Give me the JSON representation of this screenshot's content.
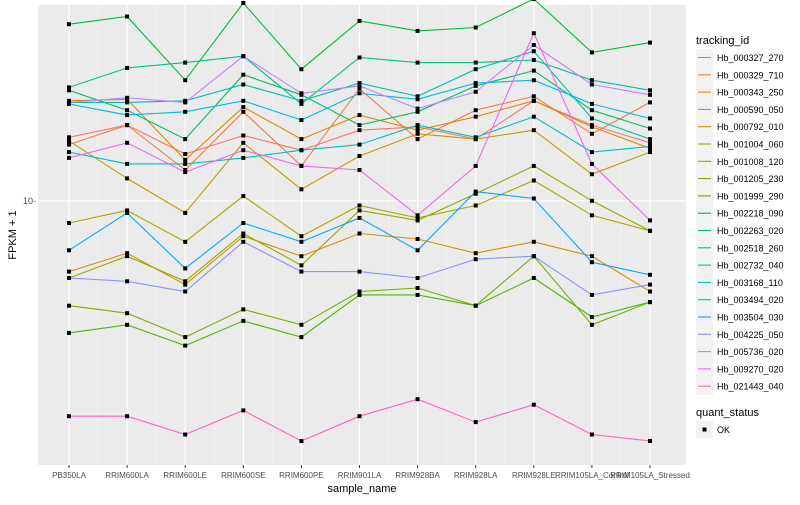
{
  "chart_data": {
    "type": "line",
    "xlabel": "sample_name",
    "ylabel": "FPKM + 1",
    "y_scale": "log10",
    "ylim": [
      3.25,
      23
    ],
    "y_ticks": [
      10
    ],
    "y_tick_labels": [
      "10-"
    ],
    "grid": true,
    "legend_placement": "right",
    "categories": [
      "PB350LA",
      "RRIM600LA",
      "RRIM600LE",
      "RRIM600SE",
      "RRIM600PE",
      "RRIM901LA",
      "RRIM928BA",
      "RRIM928LA",
      "RRIM928LE",
      "RRIM105LA_Control",
      "RRIM105LA_Stressed"
    ],
    "x_tick_labels": [
      "PB350LA",
      "RRIM600LA",
      "RRIM600LE",
      "RRIM600SE",
      "RRIM600PE",
      "RRIM901LA",
      "RRIM928BA",
      "RRIM928LA",
      "RRIM928LE",
      "RRIM105LA_Control",
      "RRIM105LA_Stressed"
    ],
    "legend_title": "tracking_id",
    "series": [
      {
        "name": "Hb_000327_270",
        "color": "#F8766D",
        "values": [
          13.1,
          13.8,
          12.2,
          13.2,
          12.4,
          13.5,
          13.7,
          13.0,
          15.3,
          13.8,
          12.8
        ]
      },
      {
        "name": "Hb_000329_710",
        "color": "#EF7F49",
        "values": [
          12.7,
          13.8,
          11.4,
          14.6,
          11.6,
          16.1,
          13.0,
          14.7,
          15.6,
          13.3,
          15.2
        ]
      },
      {
        "name": "Hb_000343_250",
        "color": "#E48800",
        "values": [
          15.3,
          15.4,
          11.9,
          14.9,
          13.0,
          14.4,
          13.5,
          14.3,
          15.3,
          13.7,
          12.5
        ]
      },
      {
        "name": "Hb_000590_050",
        "color": "#D69100",
        "values": [
          7.4,
          8.0,
          7.0,
          8.6,
          7.9,
          8.7,
          8.5,
          8.0,
          8.4,
          7.9,
          6.8
        ]
      },
      {
        "name": "Hb_000792_010",
        "color": "#C49A00",
        "values": [
          12.9,
          11.0,
          9.5,
          12.8,
          10.5,
          12.1,
          13.3,
          13.0,
          13.5,
          11.2,
          12.3
        ]
      },
      {
        "name": "Hb_001004_060",
        "color": "#AFA200",
        "values": [
          9.1,
          9.6,
          8.4,
          10.2,
          8.6,
          9.8,
          9.3,
          9.8,
          10.9,
          9.4,
          8.8
        ]
      },
      {
        "name": "Hb_001008_120",
        "color": "#96A900",
        "values": [
          7.2,
          7.9,
          7.1,
          8.7,
          7.6,
          9.6,
          9.2,
          10.3,
          11.6,
          10.0,
          8.8
        ]
      },
      {
        "name": "Hb_001205_230",
        "color": "#77AF00",
        "values": [
          6.4,
          6.2,
          5.6,
          6.3,
          5.9,
          6.8,
          6.9,
          6.4,
          7.9,
          5.9,
          6.5
        ]
      },
      {
        "name": "Hb_001999_290",
        "color": "#4EB400",
        "values": [
          5.7,
          5.9,
          5.4,
          6.0,
          5.6,
          6.7,
          6.7,
          6.4,
          7.2,
          6.1,
          6.5
        ]
      },
      {
        "name": "Hb_002218_090",
        "color": "#00BA38",
        "values": [
          21.2,
          21.9,
          16.7,
          23.2,
          17.5,
          21.5,
          20.6,
          20.9,
          23.6,
          18.8,
          19.6
        ]
      },
      {
        "name": "Hb_002263_020",
        "color": "#00BE67",
        "values": [
          16.0,
          14.7,
          13.0,
          17.1,
          15.7,
          13.8,
          14.6,
          16.3,
          17.4,
          14.7,
          13.6
        ]
      },
      {
        "name": "Hb_002518_260",
        "color": "#00C08B",
        "values": [
          16.2,
          17.6,
          18.0,
          18.5,
          15.1,
          18.4,
          18.0,
          18.0,
          18.2,
          16.7,
          16.0
        ]
      },
      {
        "name": "Hb_002732_040",
        "color": "#00C1AA",
        "values": [
          15.2,
          15.2,
          15.3,
          16.4,
          15.3,
          16.5,
          15.6,
          17.5,
          18.9,
          14.2,
          13.0
        ]
      },
      {
        "name": "Hb_003168_110",
        "color": "#00BFC4",
        "values": [
          12.3,
          11.7,
          11.7,
          12.0,
          12.4,
          12.7,
          13.8,
          13.1,
          14.3,
          12.3,
          12.6
        ]
      },
      {
        "name": "Hb_003494_020",
        "color": "#00B8E7",
        "values": [
          15.1,
          14.4,
          14.6,
          15.3,
          14.1,
          15.8,
          15.4,
          16.5,
          16.7,
          15.1,
          14.2
        ]
      },
      {
        "name": "Hb_003504_030",
        "color": "#00A9FF",
        "values": [
          8.1,
          9.5,
          7.5,
          9.1,
          8.4,
          9.3,
          8.1,
          10.4,
          10.1,
          7.7,
          7.3
        ]
      },
      {
        "name": "Hb_004225_050",
        "color": "#8494FF",
        "values": [
          7.2,
          7.1,
          6.8,
          8.4,
          7.4,
          7.4,
          7.2,
          7.8,
          7.9,
          6.7,
          7.0
        ]
      },
      {
        "name": "Hb_005736_020",
        "color": "#C77CFF",
        "values": [
          15.2,
          15.5,
          15.2,
          18.5,
          15.8,
          16.3,
          14.8,
          15.9,
          19.4,
          16.4,
          15.7
        ]
      },
      {
        "name": "Hb_009270_020",
        "color": "#ED68ED",
        "values": [
          12.0,
          12.8,
          11.3,
          12.4,
          11.6,
          11.4,
          9.4,
          11.6,
          20.4,
          11.7,
          9.2
        ]
      },
      {
        "name": "Hb_021443_040",
        "color": "#FF61C3",
        "values": [
          4.0,
          4.0,
          3.7,
          4.1,
          3.6,
          4.0,
          4.3,
          3.9,
          4.2,
          3.7,
          3.6
        ]
      }
    ],
    "legend_entries": [
      "Hb_000327_270",
      "Hb_000329_710",
      "Hb_000343_250",
      "Hb_000590_050",
      "Hb_000792_010",
      "Hb_001004_060",
      "Hb_001008_120",
      "Hb_001205_230",
      "Hb_001999_290",
      "Hb_002218_090",
      "Hb_002263_020",
      "Hb_002518_260",
      "Hb_002732_040",
      "Hb_003168_110",
      "Hb_003494_020",
      "Hb_003504_030",
      "Hb_004225_050",
      "Hb_005736_020",
      "Hb_009270_020",
      "Hb_021443_040"
    ],
    "shape_legend": {
      "title": "quant_status",
      "entries": [
        "OK"
      ]
    },
    "panel_background": "#EBEBEB",
    "gridline_color": "#FFFFFF",
    "point_color": "#000000"
  }
}
